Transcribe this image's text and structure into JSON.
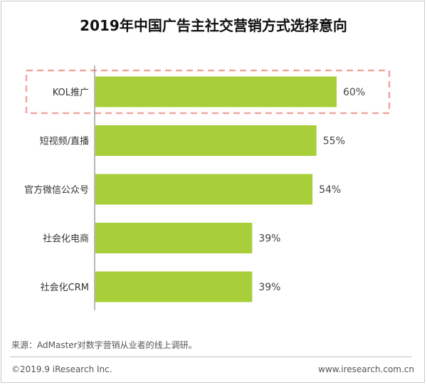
{
  "chart_data": {
    "type": "bar",
    "orientation": "horizontal",
    "title": "2019年中国广告主社交营销方式选择意向",
    "categories": [
      "KOL推广",
      "短视频/直播",
      "官方微信公众号",
      "社会化电商",
      "社会化CRM"
    ],
    "values": [
      60,
      55,
      54,
      39,
      39
    ],
    "value_labels": [
      "60%",
      "55%",
      "54%",
      "39%",
      "39%"
    ],
    "unit": "%",
    "xlim": [
      0,
      100
    ],
    "grid": false,
    "highlighted_category": "KOL推广",
    "colors": {
      "bar": "#a8cf3a",
      "axis": "#888888",
      "highlight_border": "#f0a6a0"
    }
  },
  "footer": {
    "source": "来源：AdMaster对数字营销从业者的线上调研。",
    "copyright": "©2019.9 iResearch Inc.",
    "website": "www.iresearch.com.cn"
  }
}
